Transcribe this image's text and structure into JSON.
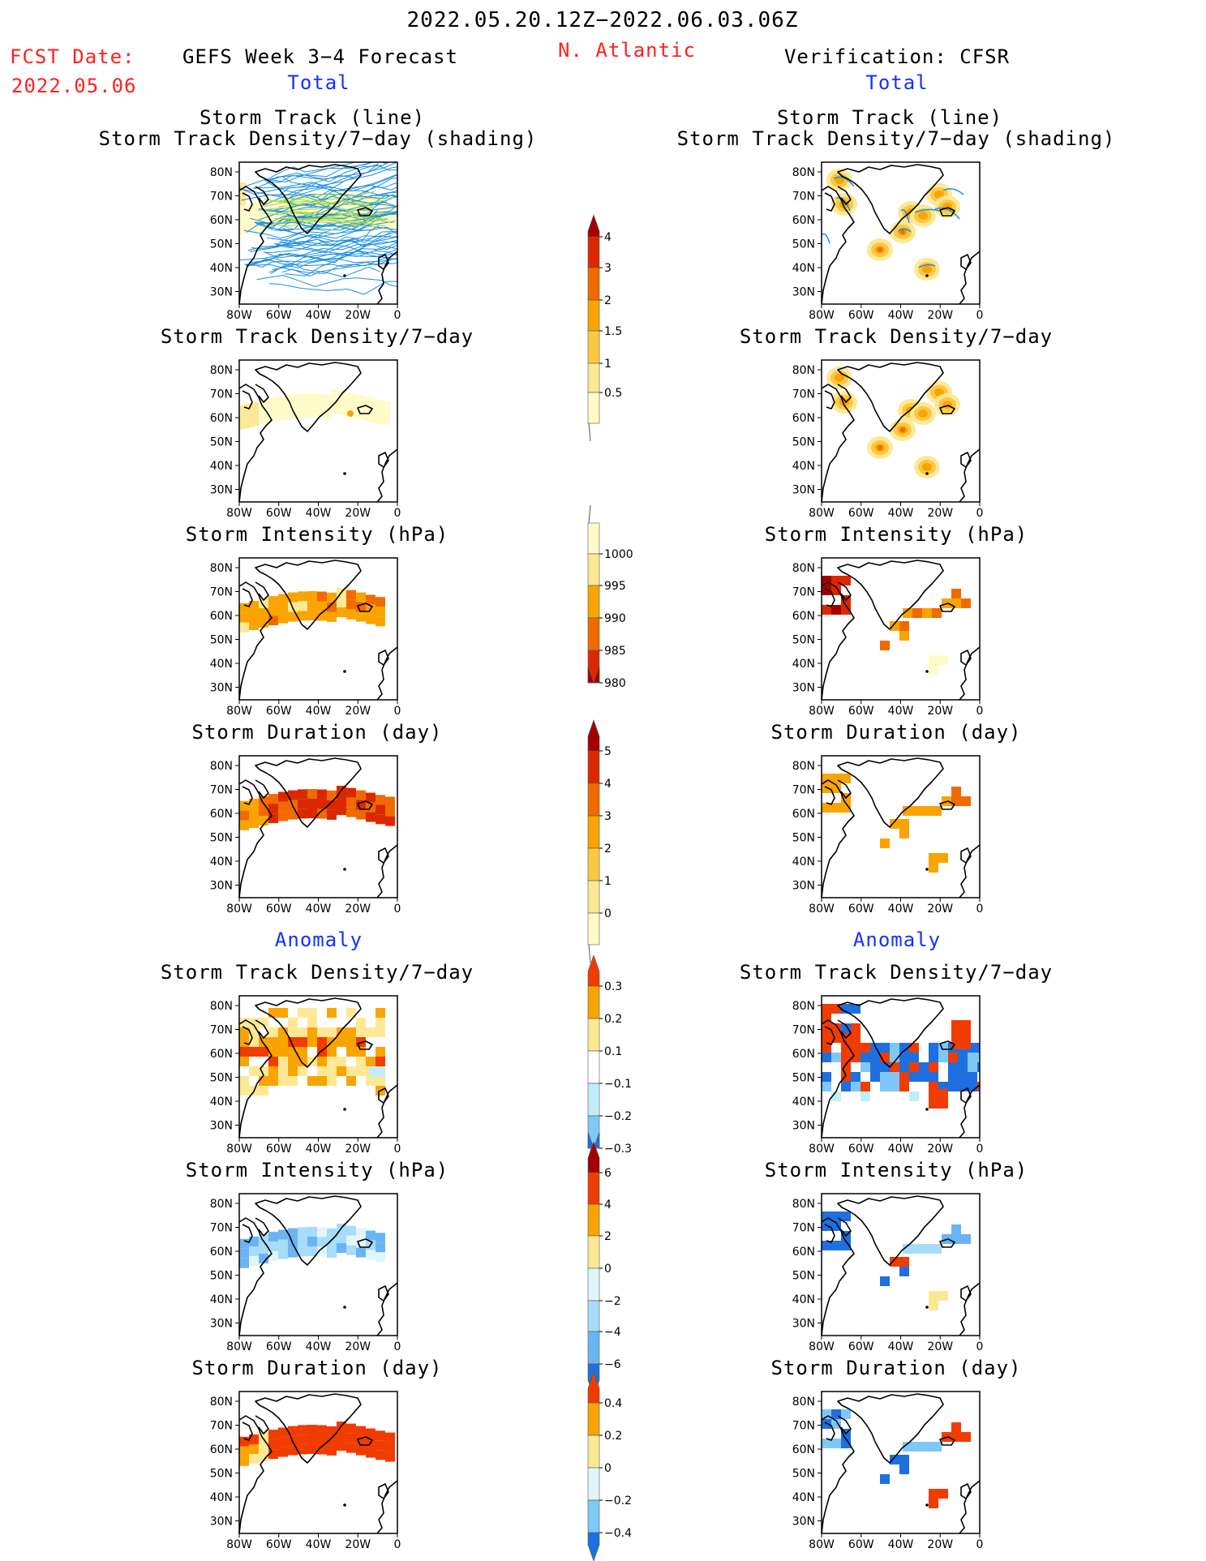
{
  "header": {
    "period": "2022.05.20.12Z−2022.06.03.06Z",
    "region": "N. Atlantic",
    "fcst_label": "FCST Date:",
    "fcst_date": "2022.05.06",
    "left_title": "GEFS Week 3−4 Forecast",
    "right_title": "Verification: CFSR"
  },
  "sections": {
    "total": "Total",
    "anomaly": "Anomaly"
  },
  "panel_titles": {
    "track_line": "Storm Track (line)",
    "track_shading": "Storm Track Density/7−day (shading)",
    "density": "Storm Track Density/7−day",
    "intensity": "Storm Intensity (hPa)",
    "duration": "Storm Duration (day)"
  },
  "axes": {
    "lat_labels": [
      "80N",
      "70N",
      "60N",
      "50N",
      "40N",
      "30N"
    ],
    "lon_labels": [
      "80W",
      "60W",
      "40W",
      "20W",
      "0"
    ]
  },
  "colorbars": [
    {
      "name": "density",
      "labels": [
        "4",
        "3",
        "2",
        "1.5",
        "1",
        "0.5"
      ],
      "colors": [
        "#a50000",
        "#dc2800",
        "#f06a00",
        "#f9a400",
        "#fbc845",
        "#fde995",
        "#fffbc9"
      ]
    },
    {
      "name": "intensity",
      "labels": [
        "1000",
        "995",
        "990",
        "985",
        "980"
      ],
      "colors": [
        "#fffbc9",
        "#fde995",
        "#f9a400",
        "#f06a00",
        "#dc2800",
        "#a50000"
      ]
    },
    {
      "name": "duration",
      "labels": [
        "5",
        "4",
        "3",
        "2",
        "1",
        "0"
      ],
      "colors": [
        "#a50000",
        "#dc2800",
        "#f06a00",
        "#f9a400",
        "#fbc845",
        "#fde995",
        "#fffbc9"
      ]
    },
    {
      "name": "density-anomaly",
      "labels": [
        "0.3",
        "0.2",
        "0.1",
        "−0.1",
        "−0.2",
        "−0.3"
      ],
      "colors": [
        "#f03c00",
        "#f9a400",
        "#fde995",
        "#ffffff",
        "#bfeefa",
        "#7ec8f7",
        "#1e6fe0"
      ]
    },
    {
      "name": "intensity-anomaly",
      "labels": [
        "6",
        "4",
        "2",
        "0",
        "−2",
        "−4",
        "−6"
      ],
      "colors": [
        "#a50000",
        "#f03c00",
        "#f9a400",
        "#fde995",
        "#e0f6fb",
        "#a8dcf8",
        "#6ab4f4",
        "#1e6fe0"
      ]
    },
    {
      "name": "duration-anomaly",
      "labels": [
        "0.4",
        "0.2",
        "0",
        "−0.2",
        "−0.4"
      ],
      "colors": [
        "#f03c00",
        "#f9a400",
        "#fde995",
        "#e0f6fb",
        "#7ec8f7",
        "#1e6fe0"
      ]
    }
  ]
}
